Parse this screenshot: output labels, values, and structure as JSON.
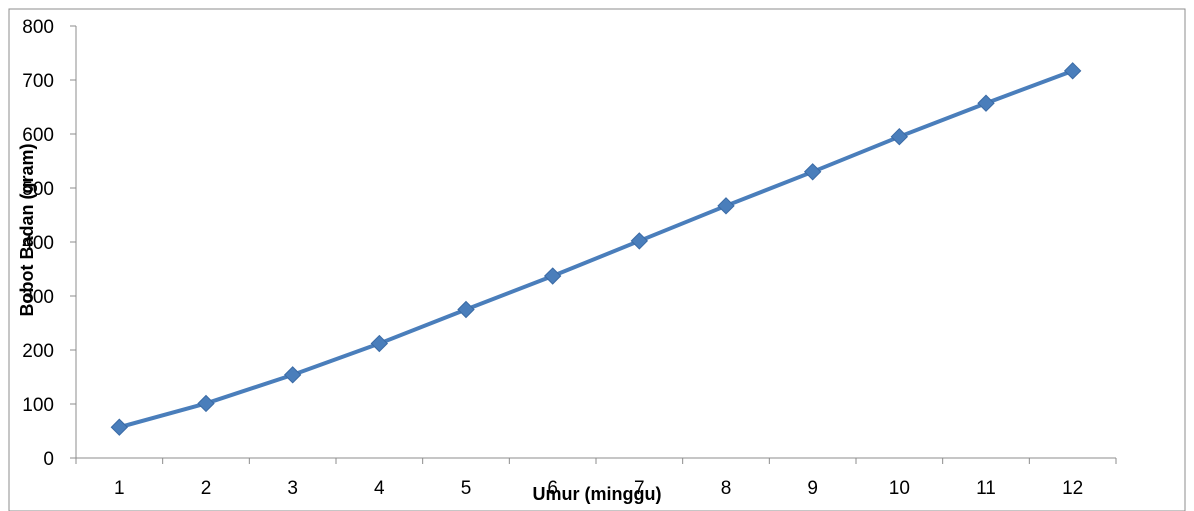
{
  "chart_data": {
    "type": "line",
    "title": "",
    "xlabel": "Umur (minggu)",
    "ylabel": "Bobot Badan (gram)",
    "x": [
      "1",
      "2",
      "3",
      "4",
      "5",
      "6",
      "7",
      "8",
      "9",
      "10",
      "11",
      "12"
    ],
    "series": [
      {
        "values": [
          57,
          101,
          154,
          212,
          275,
          337,
          402,
          467,
          530,
          595,
          657,
          717
        ]
      }
    ],
    "ylim": [
      0,
      800
    ],
    "yticks": [
      "0",
      "100",
      "200",
      "300",
      "400",
      "500",
      "600",
      "700",
      "800"
    ],
    "grid": false,
    "legend": "none",
    "line_color": "#4a7ebb",
    "marker": "diamond"
  }
}
